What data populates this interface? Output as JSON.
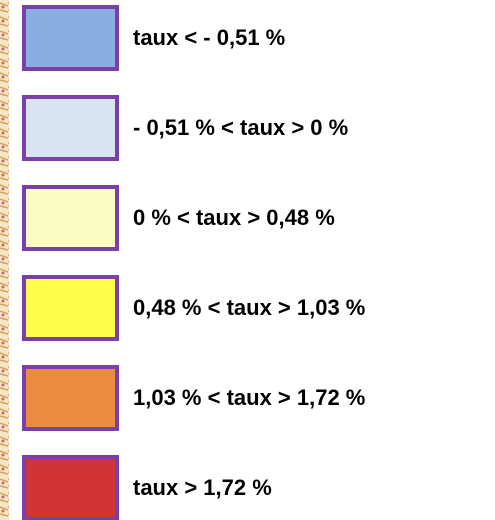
{
  "legend": {
    "items": [
      {
        "label": "taux < - 0,51 %",
        "color": "#8aaee2"
      },
      {
        "label": "- 0,51 % < taux > 0 %",
        "color": "#d8e3f4"
      },
      {
        "label": "0 % < taux > 0,48 %",
        "color": "#fbfcc2"
      },
      {
        "label": "0,48 % < taux > 1,03 %",
        "color": "#fdfc48"
      },
      {
        "label": "1,03 % < taux > 1,72 %",
        "color": "#ea8b40"
      },
      {
        "label": "taux > 1,72 %",
        "color": "#d03434"
      }
    ]
  }
}
